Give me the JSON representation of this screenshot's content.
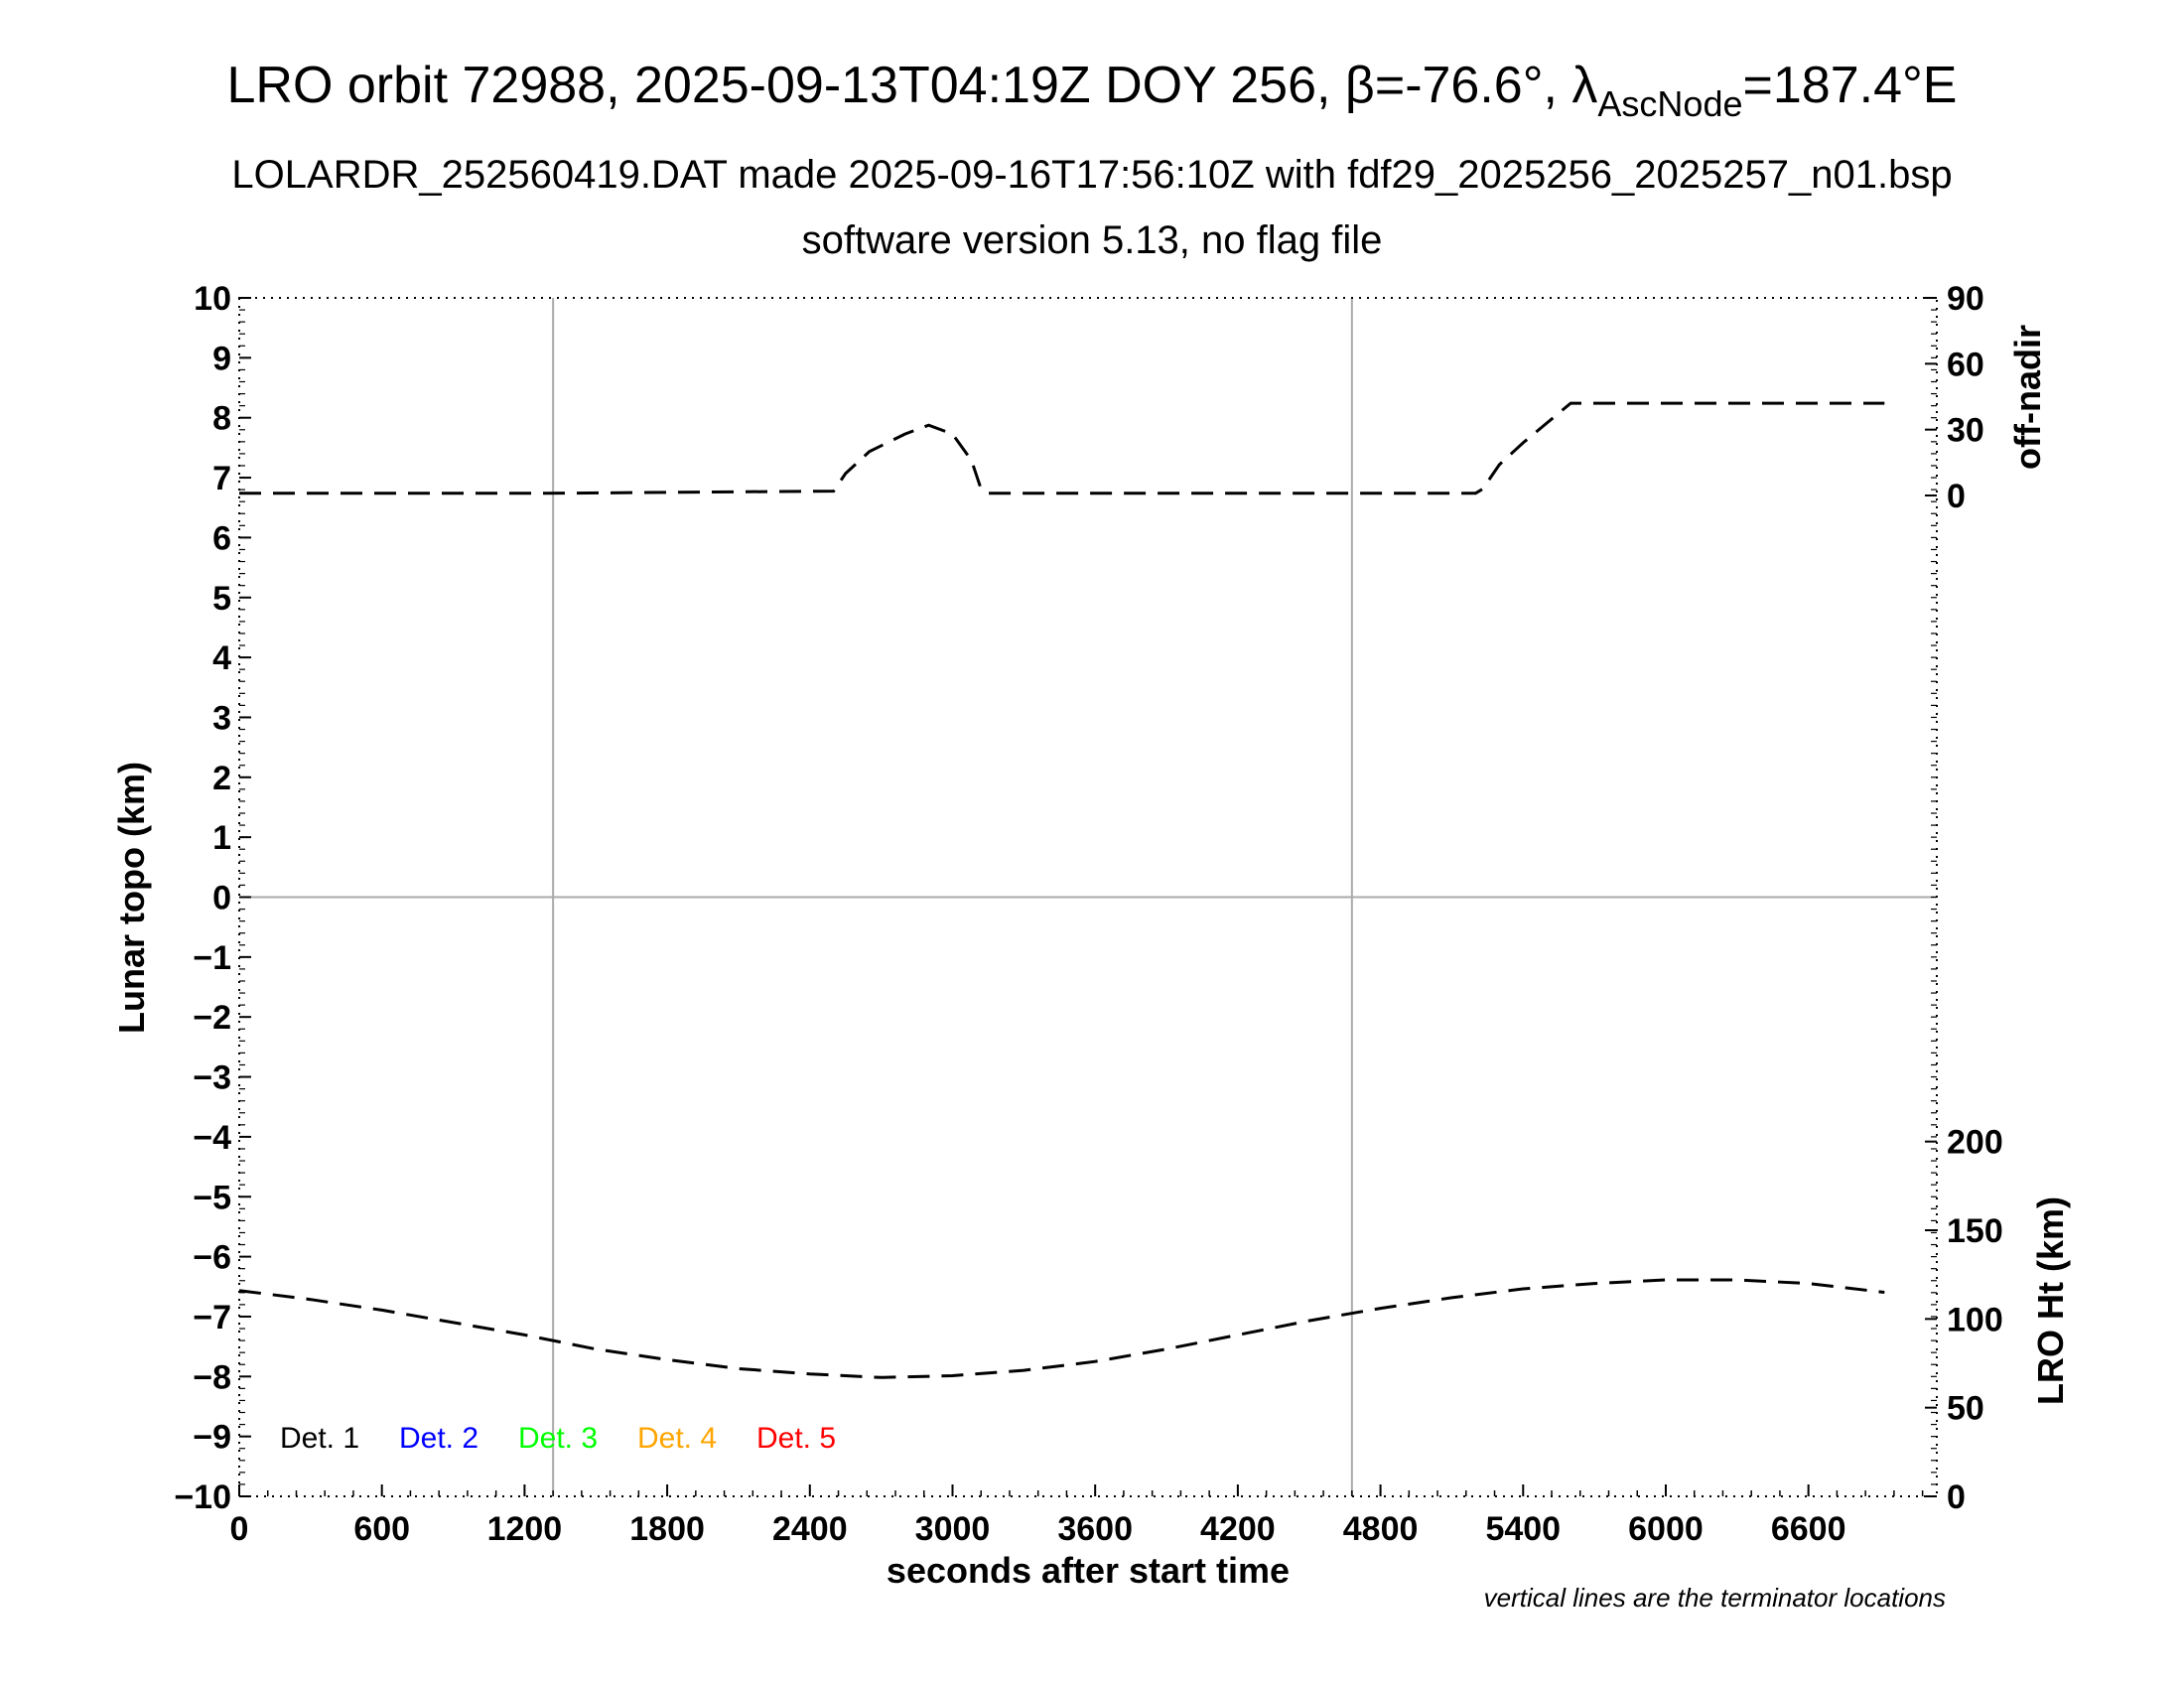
{
  "chart_data": {
    "type": "line",
    "title": "LRO orbit 72988, 2025-09-13T04:19Z DOY 256, β=-76.6°, λ",
    "title_sub": "AscNode",
    "title_end": "=187.4°E",
    "subtitle1": "LOLARDR_252560419.DAT made 2025-09-16T17:56:10Z with fdf29_2025256_2025257_n01.bsp",
    "subtitle2": "software version 5.13, no flag file",
    "xlabel": "seconds after start time",
    "ylabel_left": "Lunar topo (km)",
    "ylabel_right_top": "off-nadir",
    "ylabel_right_bottom": "LRO Ht (km)",
    "footnote": "vertical lines are the terminator locations",
    "xlim": [
      0,
      7140
    ],
    "ylim_left": [
      -10,
      10
    ],
    "x_ticks": [
      "0",
      "600",
      "1200",
      "1800",
      "2400",
      "3000",
      "3600",
      "4200",
      "4800",
      "5400",
      "6000",
      "6600"
    ],
    "y_ticks_left": [
      "10",
      "9",
      "8",
      "7",
      "6",
      "5",
      "4",
      "3",
      "2",
      "1",
      "0",
      "−1",
      "−2",
      "−3",
      "−4",
      "−5",
      "−6",
      "−7",
      "−8",
      "−9",
      "−10"
    ],
    "off_nadir_ticks": [
      "90",
      "60",
      "30",
      "0"
    ],
    "height_ticks": [
      "200",
      "150",
      "100",
      "50",
      "0"
    ],
    "terminators": [
      1320,
      4680
    ],
    "legend": [
      {
        "label": "Det. 1",
        "color": "#000000"
      },
      {
        "label": "Det. 2",
        "color": "#0000ff"
      },
      {
        "label": "Det. 3",
        "color": "#00ff00"
      },
      {
        "label": "Det. 4",
        "color": "#ffa500"
      },
      {
        "label": "Det. 5",
        "color": "#ff0000"
      }
    ],
    "series": [
      {
        "name": "off-nadir",
        "axis": "off-nadir",
        "x": [
          0,
          1300,
          2500,
          2550,
          2650,
          2800,
          2900,
          3000,
          3080,
          3120,
          3150,
          4000,
          5200,
          5230,
          5300,
          5400,
          5500,
          5600,
          6000,
          6600,
          6920
        ],
        "y": [
          1,
          1,
          2,
          10,
          20,
          28,
          32,
          28,
          16,
          3,
          1,
          1,
          1,
          3,
          14,
          24,
          33,
          42,
          42,
          42,
          42
        ]
      },
      {
        "name": "LRO Ht",
        "axis": "height",
        "x": [
          0,
          300,
          600,
          900,
          1200,
          1500,
          1800,
          2100,
          2400,
          2700,
          3000,
          3300,
          3600,
          3900,
          4200,
          4500,
          4800,
          5100,
          5400,
          5700,
          6000,
          6300,
          6600,
          6920
        ],
        "y": [
          116,
          111,
          105,
          98,
          91,
          83,
          77,
          72,
          69,
          67,
          68,
          71,
          76,
          83,
          91,
          99,
          106,
          112,
          117,
          120,
          122,
          122,
          120,
          115
        ]
      }
    ]
  }
}
